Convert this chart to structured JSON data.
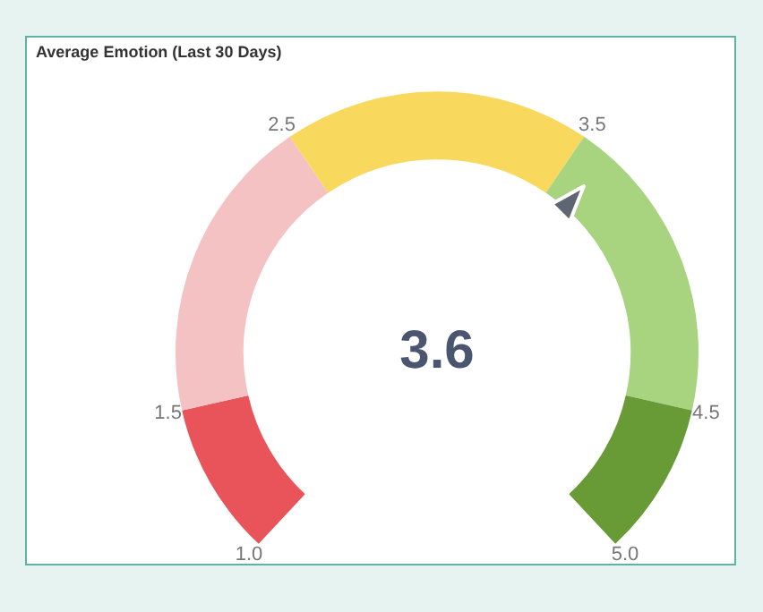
{
  "chart_data": {
    "type": "donut",
    "title": "Average Emotion (Last 30 Days)",
    "categories": [
      null,
      null,
      null,
      null,
      null
    ],
    "values": [
      12.5,
      25,
      25,
      25,
      12.5
    ],
    "colors": [
      "#e8545a",
      "#f4c2c2",
      "#f9d85e",
      "#a8d37f",
      "#689a35"
    ],
    "annotations": [
      "1.0",
      "1.5",
      "2.5",
      "3.5",
      "4.5",
      "5.0",
      "3.6"
    ],
    "legend": false
  }
}
